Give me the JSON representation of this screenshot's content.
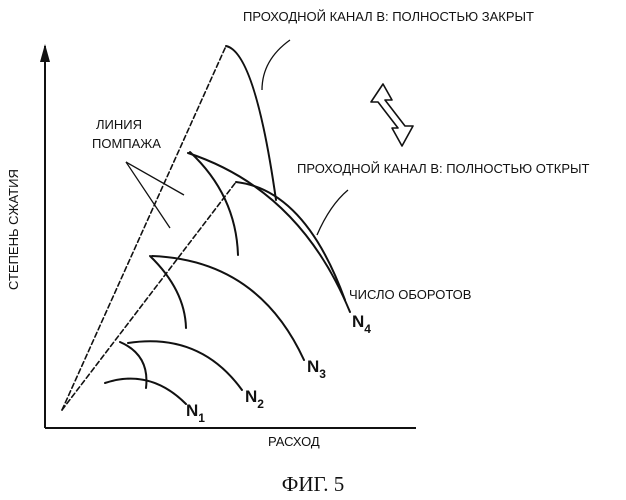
{
  "labels": {
    "closed": "ПРОХОДНОЙ КАНАЛ В:  ПОЛНОСТЬЮ  ЗАКРЫТ",
    "open": "ПРОХОДНОЙ КАНАЛ В:  ПОЛНОСТЬЮ ОТКРЫТ",
    "surge_line_1": "ЛИНИЯ",
    "surge_line_2": "ПОМПАЖА",
    "rpm": "ЧИСЛО ОБОРОТОВ",
    "y_axis": "СТЕПЕНЬ СЖАТИЯ",
    "x_axis": "РАСХОД",
    "caption": "ФИГ. 5"
  },
  "speed_curves": [
    {
      "letter": "N",
      "sub": "1"
    },
    {
      "letter": "N",
      "sub": "2"
    },
    {
      "letter": "N",
      "sub": "3"
    },
    {
      "letter": "N",
      "sub": "4"
    }
  ]
}
